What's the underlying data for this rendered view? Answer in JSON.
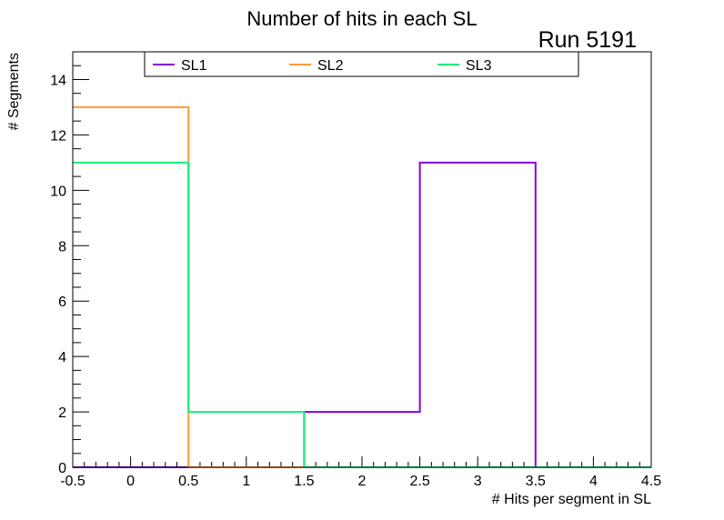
{
  "chart_data": {
    "type": "histogram-step",
    "title": "Number of hits in each SL",
    "run_label": "Run 5191",
    "xlabel": "# Hits per segment in SL",
    "ylabel": "# Segments",
    "xlim": [
      -0.5,
      4.5
    ],
    "ylim": [
      0,
      15
    ],
    "bin_edges": [
      -0.5,
      0.5,
      1.5,
      2.5,
      3.5,
      4.5
    ],
    "x_ticks": [
      "-0.5",
      "0",
      "0.5",
      "1",
      "1.5",
      "2",
      "2.5",
      "3",
      "3.5",
      "4",
      "4.5"
    ],
    "x_tick_values": [
      -0.5,
      0,
      0.5,
      1,
      1.5,
      2,
      2.5,
      3,
      3.5,
      4,
      4.5
    ],
    "y_ticks": [
      "0",
      "2",
      "4",
      "6",
      "8",
      "10",
      "12",
      "14"
    ],
    "y_tick_values": [
      0,
      2,
      4,
      6,
      8,
      10,
      12,
      14
    ],
    "grid": false,
    "legend_position": "top",
    "series": [
      {
        "name": "SL1",
        "color": "#8800dd",
        "values": [
          0,
          0,
          2,
          11,
          0
        ]
      },
      {
        "name": "SL2",
        "color": "#ff9933",
        "values": [
          13,
          0,
          0,
          0,
          0
        ]
      },
      {
        "name": "SL3",
        "color": "#11ee77",
        "values": [
          11,
          2,
          0,
          0,
          0
        ]
      }
    ]
  }
}
